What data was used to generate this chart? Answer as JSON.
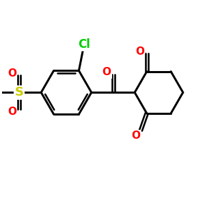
{
  "bg_color": "#ffffff",
  "atom_colors": {
    "O": "#ff0000",
    "Cl": "#00cc00",
    "S": "#cccc00"
  },
  "bond_color": "#000000",
  "bond_width": 2.2,
  "figsize": [
    3.0,
    3.0
  ],
  "dpi": 100,
  "xlim": [
    0,
    10
  ],
  "ylim": [
    0,
    10
  ]
}
